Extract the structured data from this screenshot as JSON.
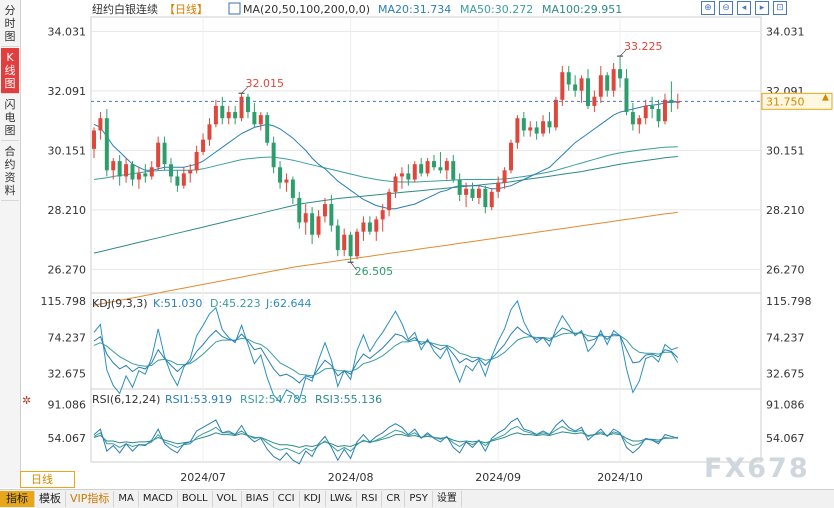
{
  "side_tabs": [
    {
      "label": "分时图",
      "active": false
    },
    {
      "label": "K线图",
      "active": true
    },
    {
      "label": "闪电图",
      "active": false
    },
    {
      "label": "合约资料",
      "active": false
    }
  ],
  "header": {
    "instrument": "纽约白银连续",
    "period_tag": "【日线】",
    "ma_label": "MA(20,50,100,200,0,0)",
    "ma20": "MA20:31.734",
    "ma50": "MA50:30.272",
    "ma100": "MA100:29.951"
  },
  "toolbar": {
    "buttons": [
      "⊕",
      "⊖",
      "◂",
      "▸",
      "⊡"
    ]
  },
  "price_panel": {
    "axis_labels": [
      "34.031",
      "32.091",
      "30.151",
      "28.210",
      "26.270"
    ],
    "current_price": "31.750",
    "high_label": "33.225",
    "mid_high_label": "32.015",
    "low_label": "26.505"
  },
  "kdj_panel": {
    "title": "KDJ(9,3,3)",
    "k": "K:51.030",
    "d": "D:45.223",
    "j": "J:62.644",
    "axis_labels": [
      "115.798",
      "74.237",
      "32.675"
    ]
  },
  "rsi_panel": {
    "title": "RSI(6,12,24)",
    "rsi1": "RSI1:53.919",
    "rsi2": "RSI2:54.783",
    "rsi3": "RSI3:55.136",
    "axis_labels": [
      "91.086",
      "54.067"
    ]
  },
  "x_axis": {
    "labels": [
      "2024/07",
      "2024/08",
      "2024/09",
      "2024/10"
    ]
  },
  "period_label": "日线",
  "bottom_tabs": [
    "指标",
    "模板",
    "VIP指标",
    "MA",
    "MACD",
    "BOLL",
    "VOL",
    "BIAS",
    "CCI",
    "KDJ",
    "LW&",
    "RSI",
    "CR",
    "PSY",
    "设置"
  ],
  "watermark": "FX678",
  "colors": {
    "up": "#e0463a",
    "down": "#2b9e6b",
    "ma20": "#2a7fb5",
    "ma50": "#3a9e9e",
    "ma100": "#2f8a8a",
    "ma200": "#e38b32",
    "grid": "#e7e7e7",
    "high_marker": "#e0463a",
    "low_marker": "#2b9e6b"
  },
  "chart_data": {
    "type": "candlestick",
    "y_range": [
      25.5,
      34.5
    ],
    "first_date": "2024-06-05",
    "candles": [
      [
        30.2,
        30.9,
        29.9,
        30.8
      ],
      [
        30.8,
        31.4,
        30.5,
        31.2
      ],
      [
        31.2,
        31.5,
        29.3,
        29.5
      ],
      [
        29.5,
        29.9,
        29.2,
        29.8
      ],
      [
        29.8,
        30.0,
        29.0,
        29.3
      ],
      [
        29.3,
        29.9,
        29.1,
        29.7
      ],
      [
        29.7,
        29.8,
        29.0,
        29.2
      ],
      [
        29.2,
        29.6,
        28.9,
        29.4
      ],
      [
        29.4,
        29.7,
        29.1,
        29.3
      ],
      [
        29.3,
        29.8,
        29.2,
        29.6
      ],
      [
        29.6,
        30.6,
        29.5,
        30.4
      ],
      [
        30.4,
        30.6,
        29.5,
        29.7
      ],
      [
        29.7,
        29.9,
        29.1,
        29.3
      ],
      [
        29.3,
        29.5,
        28.8,
        29.0
      ],
      [
        29.0,
        29.6,
        28.9,
        29.4
      ],
      [
        29.4,
        29.7,
        29.1,
        29.5
      ],
      [
        29.5,
        30.3,
        29.4,
        30.1
      ],
      [
        30.1,
        30.7,
        30.0,
        30.5
      ],
      [
        30.5,
        31.2,
        30.3,
        31.0
      ],
      [
        31.0,
        31.8,
        30.9,
        31.6
      ],
      [
        31.6,
        31.9,
        31.0,
        31.2
      ],
      [
        31.2,
        31.6,
        31.0,
        31.4
      ],
      [
        31.4,
        31.6,
        31.0,
        31.2
      ],
      [
        31.2,
        32.0,
        31.1,
        31.9
      ],
      [
        31.9,
        32.0,
        31.2,
        31.4
      ],
      [
        31.4,
        31.7,
        30.9,
        31.0
      ],
      [
        31.0,
        31.4,
        30.8,
        31.3
      ],
      [
        31.3,
        31.4,
        30.3,
        30.4
      ],
      [
        30.4,
        30.6,
        29.4,
        29.6
      ],
      [
        29.6,
        29.8,
        28.9,
        29.1
      ],
      [
        29.1,
        29.4,
        28.8,
        29.2
      ],
      [
        29.2,
        29.3,
        28.4,
        28.6
      ],
      [
        28.6,
        28.8,
        27.6,
        27.8
      ],
      [
        27.8,
        28.4,
        27.4,
        28.1
      ],
      [
        28.1,
        28.3,
        27.1,
        27.4
      ],
      [
        27.4,
        28.2,
        27.3,
        28.0
      ],
      [
        28.0,
        28.6,
        27.8,
        28.4
      ],
      [
        28.4,
        28.7,
        27.5,
        27.7
      ],
      [
        27.7,
        27.9,
        26.7,
        26.9
      ],
      [
        26.9,
        27.6,
        26.7,
        27.4
      ],
      [
        27.4,
        27.5,
        26.5,
        26.7
      ],
      [
        26.7,
        27.6,
        26.6,
        27.5
      ],
      [
        27.5,
        28.0,
        27.2,
        27.8
      ],
      [
        27.8,
        28.0,
        27.4,
        27.5
      ],
      [
        27.5,
        28.0,
        27.2,
        27.9
      ],
      [
        27.9,
        28.4,
        27.5,
        28.2
      ],
      [
        28.2,
        28.9,
        28.0,
        28.8
      ],
      [
        28.8,
        29.4,
        28.6,
        29.3
      ],
      [
        29.3,
        29.6,
        28.9,
        29.4
      ],
      [
        29.4,
        29.7,
        29.0,
        29.2
      ],
      [
        29.2,
        29.8,
        29.1,
        29.7
      ],
      [
        29.7,
        29.9,
        29.3,
        29.4
      ],
      [
        29.4,
        29.9,
        29.3,
        29.8
      ],
      [
        29.8,
        30.0,
        29.5,
        29.6
      ],
      [
        29.6,
        30.1,
        29.4,
        29.5
      ],
      [
        29.5,
        29.9,
        29.2,
        29.8
      ],
      [
        29.8,
        30.0,
        29.1,
        29.2
      ],
      [
        29.2,
        29.4,
        28.5,
        28.7
      ],
      [
        28.7,
        29.1,
        28.3,
        28.9
      ],
      [
        28.9,
        29.1,
        28.5,
        28.6
      ],
      [
        28.6,
        29.0,
        28.4,
        28.9
      ],
      [
        28.9,
        29.0,
        28.1,
        28.3
      ],
      [
        28.3,
        28.9,
        28.2,
        28.8
      ],
      [
        28.8,
        29.3,
        28.6,
        29.1
      ],
      [
        29.1,
        29.6,
        28.9,
        29.5
      ],
      [
        29.5,
        30.5,
        29.4,
        30.4
      ],
      [
        30.4,
        31.3,
        30.2,
        31.2
      ],
      [
        31.2,
        31.4,
        30.6,
        30.8
      ],
      [
        30.8,
        31.1,
        30.6,
        30.9
      ],
      [
        30.9,
        31.1,
        30.5,
        30.7
      ],
      [
        30.7,
        31.3,
        30.6,
        31.1
      ],
      [
        31.1,
        31.4,
        30.7,
        30.9
      ],
      [
        30.9,
        31.9,
        30.8,
        31.8
      ],
      [
        31.8,
        32.9,
        31.6,
        32.7
      ],
      [
        32.7,
        32.9,
        32.1,
        32.3
      ],
      [
        32.3,
        32.6,
        31.9,
        32.1
      ],
      [
        32.1,
        32.6,
        31.7,
        32.5
      ],
      [
        32.5,
        32.8,
        31.5,
        31.6
      ],
      [
        31.6,
        32.1,
        31.4,
        31.9
      ],
      [
        31.9,
        32.9,
        31.7,
        32.6
      ],
      [
        32.6,
        32.7,
        31.9,
        32.1
      ],
      [
        32.1,
        33.0,
        31.9,
        32.8
      ],
      [
        32.8,
        33.2,
        32.2,
        32.5
      ],
      [
        32.5,
        32.8,
        31.3,
        31.4
      ],
      [
        31.4,
        31.7,
        30.8,
        31.0
      ],
      [
        31.0,
        31.3,
        30.7,
        31.2
      ],
      [
        31.2,
        31.8,
        31.0,
        31.6
      ],
      [
        31.6,
        31.9,
        31.2,
        31.5
      ],
      [
        31.5,
        31.8,
        30.9,
        31.1
      ],
      [
        31.1,
        32.0,
        31.0,
        31.8
      ],
      [
        31.8,
        32.4,
        31.4,
        31.7
      ],
      [
        31.7,
        32.0,
        31.5,
        31.75
      ]
    ],
    "ma20": [
      31.0,
      30.9,
      30.6,
      30.3,
      30.1,
      29.9,
      29.7,
      29.6,
      29.5,
      29.5,
      29.55,
      29.6,
      29.6,
      29.6,
      29.6,
      29.65,
      29.7,
      29.8,
      29.95,
      30.1,
      30.25,
      30.4,
      30.55,
      30.7,
      30.8,
      30.9,
      30.95,
      31.0,
      30.95,
      30.85,
      30.7,
      30.55,
      30.35,
      30.15,
      29.9,
      29.7,
      29.55,
      29.35,
      29.15,
      29.0,
      28.85,
      28.7,
      28.55,
      28.45,
      28.35,
      28.3,
      28.25,
      28.25,
      28.3,
      28.35,
      28.4,
      28.5,
      28.6,
      28.7,
      28.8,
      28.85,
      28.95,
      29.0,
      29.0,
      29.0,
      29.0,
      28.95,
      28.9,
      28.9,
      28.95,
      29.0,
      29.1,
      29.2,
      29.3,
      29.4,
      29.5,
      29.6,
      29.8,
      30.0,
      30.2,
      30.4,
      30.55,
      30.7,
      30.85,
      31.0,
      31.15,
      31.3,
      31.4,
      31.45,
      31.5,
      31.55,
      31.6,
      31.62,
      31.65,
      31.7,
      31.72,
      31.734
    ],
    "ma50": [
      29.2,
      29.23,
      29.26,
      29.3,
      29.33,
      29.36,
      29.39,
      29.42,
      29.45,
      29.47,
      29.49,
      29.5,
      29.5,
      29.5,
      29.5,
      29.5,
      29.52,
      29.55,
      29.6,
      29.65,
      29.7,
      29.75,
      29.8,
      29.85,
      29.88,
      29.9,
      29.92,
      29.93,
      29.93,
      29.9,
      29.87,
      29.83,
      29.78,
      29.73,
      29.68,
      29.63,
      29.58,
      29.53,
      29.48,
      29.43,
      29.38,
      29.33,
      29.28,
      29.24,
      29.2,
      29.17,
      29.15,
      29.13,
      29.12,
      29.12,
      29.12,
      29.13,
      29.14,
      29.15,
      29.16,
      29.17,
      29.18,
      29.19,
      29.2,
      29.2,
      29.2,
      29.2,
      29.2,
      29.21,
      29.22,
      29.24,
      29.27,
      29.3,
      29.33,
      29.37,
      29.41,
      29.45,
      29.5,
      29.56,
      29.62,
      29.68,
      29.74,
      29.8,
      29.86,
      29.92,
      29.98,
      30.03,
      30.07,
      30.1,
      30.13,
      30.16,
      30.19,
      30.21,
      30.23,
      30.25,
      30.26,
      30.272
    ],
    "ma100": [
      26.8,
      26.85,
      26.9,
      26.95,
      27.0,
      27.05,
      27.1,
      27.15,
      27.2,
      27.25,
      27.3,
      27.35,
      27.4,
      27.45,
      27.5,
      27.55,
      27.6,
      27.65,
      27.7,
      27.75,
      27.8,
      27.85,
      27.9,
      27.95,
      28.0,
      28.05,
      28.1,
      28.15,
      28.2,
      28.25,
      28.3,
      28.35,
      28.4,
      28.43,
      28.46,
      28.49,
      28.52,
      28.55,
      28.58,
      28.6,
      28.62,
      28.64,
      28.66,
      28.68,
      28.7,
      28.72,
      28.74,
      28.76,
      28.78,
      28.8,
      28.82,
      28.84,
      28.86,
      28.88,
      28.9,
      28.92,
      28.94,
      28.96,
      28.98,
      29.0,
      29.02,
      29.04,
      29.06,
      29.08,
      29.1,
      29.13,
      29.16,
      29.19,
      29.22,
      29.25,
      29.28,
      29.31,
      29.34,
      29.37,
      29.4,
      29.43,
      29.46,
      29.5,
      29.54,
      29.58,
      29.62,
      29.66,
      29.7,
      29.73,
      29.76,
      29.79,
      29.82,
      29.85,
      29.88,
      29.91,
      29.93,
      29.951
    ],
    "ma200": [
      25.1,
      25.14,
      25.18,
      25.22,
      25.26,
      25.3,
      25.34,
      25.38,
      25.42,
      25.46,
      25.5,
      25.54,
      25.58,
      25.62,
      25.66,
      25.7,
      25.74,
      25.78,
      25.82,
      25.86,
      25.9,
      25.94,
      25.98,
      26.02,
      26.06,
      26.1,
      26.14,
      26.18,
      26.22,
      26.26,
      26.3,
      26.34,
      26.37,
      26.4,
      26.43,
      26.46,
      26.49,
      26.52,
      26.55,
      26.58,
      26.61,
      26.64,
      26.67,
      26.7,
      26.73,
      26.76,
      26.79,
      26.82,
      26.85,
      26.88,
      26.91,
      26.94,
      26.97,
      27.0,
      27.03,
      27.06,
      27.09,
      27.12,
      27.15,
      27.18,
      27.21,
      27.24,
      27.27,
      27.3,
      27.33,
      27.36,
      27.39,
      27.42,
      27.45,
      27.48,
      27.51,
      27.54,
      27.57,
      27.6,
      27.63,
      27.66,
      27.69,
      27.72,
      27.75,
      27.78,
      27.81,
      27.84,
      27.87,
      27.9,
      27.93,
      27.96,
      27.99,
      28.02,
      28.05,
      28.08,
      28.1,
      28.13
    ],
    "kdj_range": [
      15,
      125
    ],
    "k": [
      70,
      75,
      55,
      45,
      38,
      42,
      35,
      40,
      38,
      45,
      60,
      50,
      42,
      35,
      42,
      46,
      58,
      66,
      75,
      82,
      75,
      72,
      70,
      78,
      70,
      60,
      62,
      50,
      38,
      30,
      32,
      28,
      22,
      30,
      28,
      38,
      48,
      42,
      30,
      36,
      32,
      45,
      55,
      50,
      56,
      62,
      70,
      78,
      76,
      70,
      74,
      66,
      70,
      64,
      60,
      64,
      55,
      45,
      50,
      46,
      50,
      42,
      50,
      58,
      66,
      78,
      86,
      80,
      76,
      72,
      74,
      70,
      78,
      85,
      82,
      78,
      80,
      70,
      72,
      78,
      72,
      78,
      76,
      60,
      45,
      46,
      54,
      55,
      52,
      60,
      58,
      51
    ],
    "d": [
      65,
      68,
      64,
      58,
      52,
      48,
      44,
      42,
      41,
      42,
      48,
      49,
      47,
      43,
      43,
      44,
      49,
      55,
      62,
      69,
      71,
      71,
      71,
      73,
      72,
      68,
      66,
      61,
      53,
      45,
      41,
      37,
      32,
      31,
      30,
      33,
      38,
      39,
      36,
      36,
      35,
      38,
      44,
      46,
      49,
      53,
      59,
      65,
      69,
      69,
      71,
      69,
      69,
      67,
      65,
      65,
      62,
      56,
      54,
      51,
      51,
      48,
      49,
      52,
      57,
      64,
      71,
      74,
      75,
      74,
      74,
      73,
      75,
      78,
      79,
      79,
      79,
      76,
      75,
      76,
      75,
      76,
      76,
      71,
      62,
      57,
      56,
      56,
      55,
      57,
      57,
      45.2
    ],
    "j": [
      80,
      89,
      37,
      19,
      10,
      30,
      17,
      36,
      32,
      51,
      84,
      52,
      32,
      19,
      40,
      50,
      76,
      88,
      101,
      108,
      83,
      74,
      68,
      88,
      66,
      44,
      54,
      28,
      8,
      0,
      14,
      10,
      2,
      28,
      24,
      48,
      68,
      48,
      18,
      36,
      26,
      59,
      77,
      58,
      70,
      80,
      92,
      104,
      90,
      72,
      80,
      60,
      72,
      58,
      50,
      62,
      41,
      23,
      42,
      36,
      48,
      30,
      52,
      70,
      84,
      106,
      116,
      92,
      78,
      68,
      74,
      64,
      84,
      99,
      88,
      76,
      82,
      58,
      66,
      82,
      66,
      82,
      76,
      38,
      11,
      24,
      50,
      53,
      46,
      66,
      60,
      62.6
    ],
    "rsi_range": [
      28,
      108
    ],
    "rsi1": [
      58,
      64,
      40,
      46,
      38,
      48,
      40,
      47,
      46,
      52,
      64,
      48,
      42,
      38,
      48,
      50,
      62,
      66,
      70,
      74,
      60,
      62,
      58,
      68,
      56,
      50,
      54,
      42,
      34,
      30,
      38,
      30,
      26,
      40,
      34,
      48,
      56,
      44,
      30,
      42,
      32,
      50,
      58,
      50,
      56,
      60,
      66,
      70,
      66,
      58,
      64,
      54,
      60,
      54,
      50,
      56,
      44,
      38,
      50,
      44,
      52,
      40,
      54,
      60,
      64,
      72,
      76,
      64,
      62,
      58,
      62,
      58,
      68,
      74,
      66,
      62,
      66,
      52,
      58,
      64,
      56,
      64,
      60,
      44,
      38,
      44,
      54,
      52,
      48,
      58,
      56,
      53.9
    ],
    "rsi2": [
      56,
      60,
      48,
      48,
      44,
      48,
      45,
      47,
      47,
      50,
      58,
      50,
      47,
      44,
      47,
      48,
      55,
      59,
      62,
      66,
      60,
      60,
      58,
      62,
      57,
      54,
      55,
      49,
      44,
      41,
      43,
      40,
      37,
      43,
      40,
      46,
      51,
      46,
      40,
      44,
      40,
      47,
      52,
      49,
      52,
      55,
      59,
      63,
      61,
      57,
      60,
      55,
      58,
      55,
      53,
      55,
      49,
      45,
      50,
      47,
      51,
      46,
      52,
      55,
      58,
      64,
      67,
      62,
      60,
      58,
      60,
      58,
      63,
      67,
      63,
      61,
      63,
      56,
      58,
      61,
      57,
      61,
      59,
      50,
      46,
      48,
      53,
      52,
      50,
      55,
      54,
      54.8
    ],
    "rsi3": [
      55,
      57,
      51,
      51,
      49,
      50,
      49,
      50,
      50,
      51,
      55,
      52,
      50,
      48,
      49,
      50,
      53,
      55,
      57,
      60,
      58,
      58,
      57,
      59,
      57,
      55,
      55,
      52,
      49,
      47,
      47,
      46,
      44,
      46,
      45,
      47,
      50,
      48,
      45,
      46,
      45,
      48,
      51,
      50,
      51,
      53,
      55,
      58,
      58,
      56,
      57,
      55,
      56,
      55,
      54,
      55,
      52,
      50,
      51,
      50,
      51,
      49,
      51,
      53,
      55,
      58,
      60,
      58,
      58,
      57,
      58,
      57,
      59,
      61,
      60,
      59,
      60,
      57,
      58,
      59,
      57,
      59,
      58,
      54,
      51,
      51,
      53,
      53,
      52,
      54,
      54,
      55.1
    ],
    "high_marker": {
      "index": 82,
      "value": 33.225
    },
    "mid_marker": {
      "index": 23,
      "value": 32.015
    },
    "low_marker": {
      "index": 40,
      "value": 26.505
    }
  }
}
